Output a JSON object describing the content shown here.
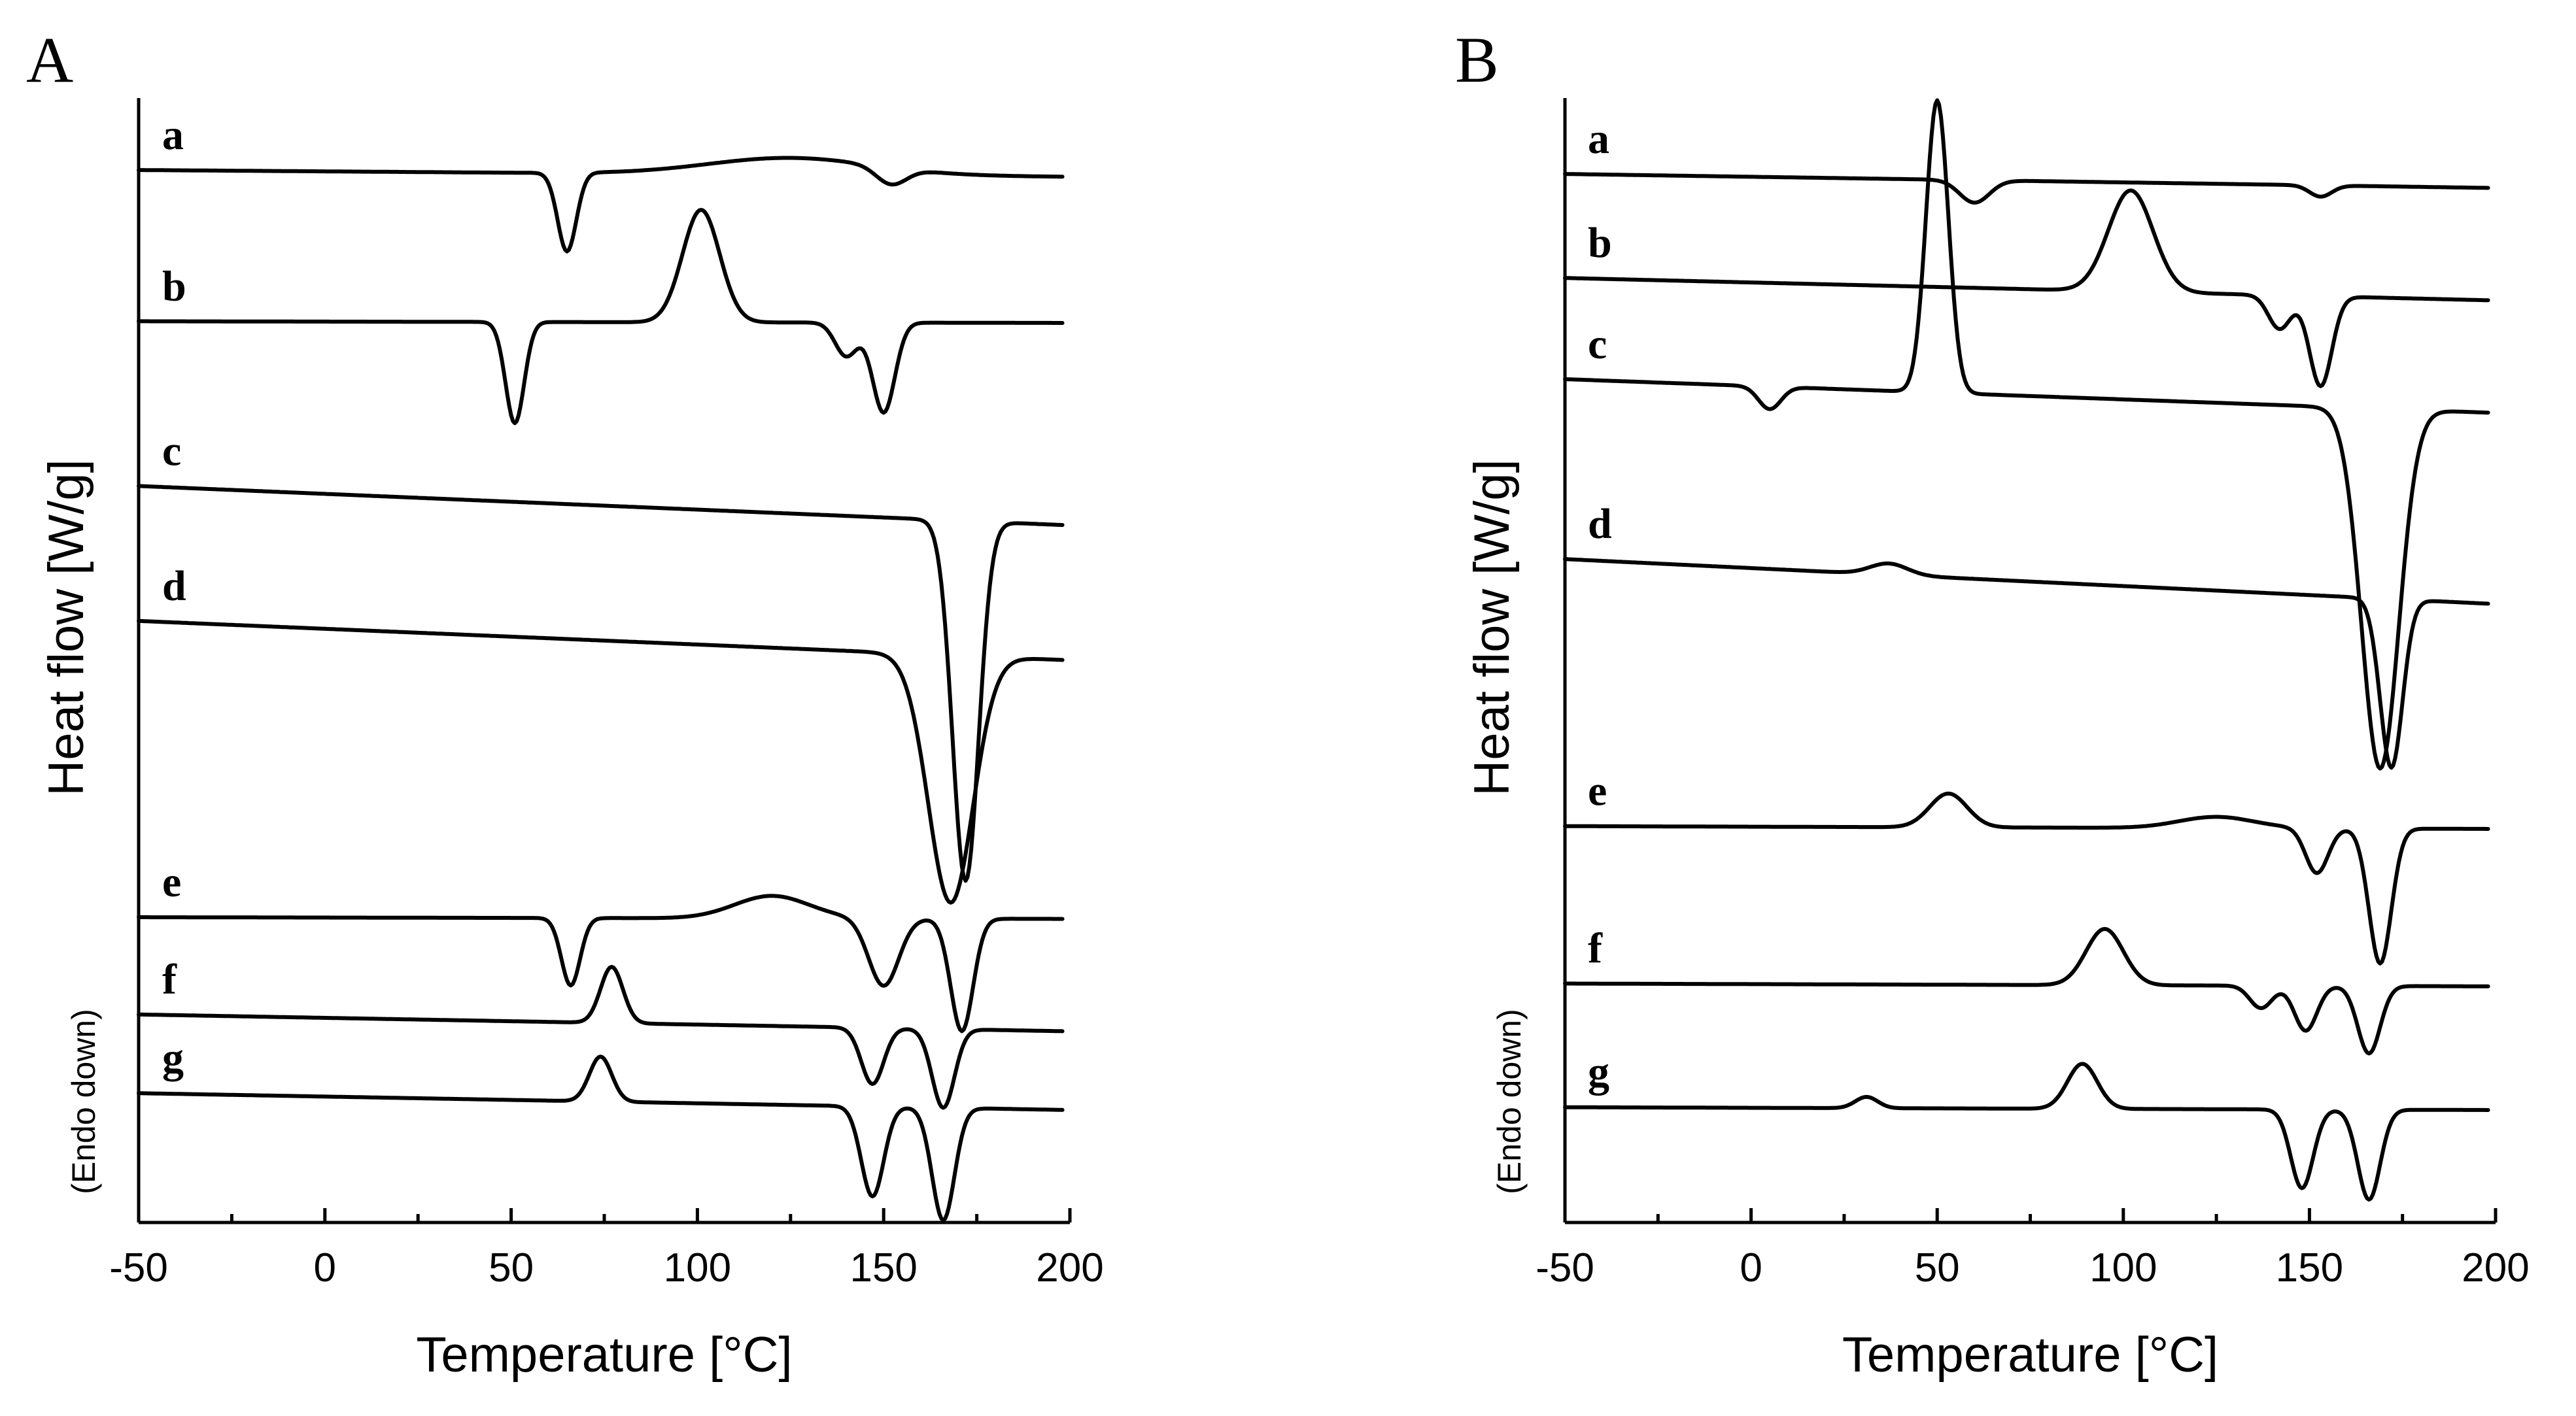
{
  "chart_data": [
    {
      "panel": "A",
      "type": "line",
      "xlabel": "Temperature [°C]",
      "ylabel": "Heat flow [W/g]",
      "ylabel_note": "(Endo down)",
      "xlim": [
        -50,
        200
      ],
      "xticks": [
        -50,
        0,
        50,
        100,
        150,
        200
      ],
      "yticks": [],
      "series": [
        {
          "name": "a",
          "baseline": 0.93,
          "tilt": 0.012,
          "features": [
            {
              "c": 65,
              "a": -0.07,
              "w": 2.5
            },
            {
              "c": 125,
              "a": 0.015,
              "w": 22
            },
            {
              "c": 152,
              "a": -0.015,
              "w": 4
            }
          ]
        },
        {
          "name": "b",
          "baseline": 0.8,
          "tilt": 0.003,
          "features": [
            {
              "c": 51,
              "a": -0.09,
              "w": 2.5
            },
            {
              "c": 101,
              "a": 0.1,
              "w": 5
            },
            {
              "c": 140,
              "a": -0.03,
              "w": 3
            },
            {
              "c": 150,
              "a": -0.08,
              "w": 3
            }
          ]
        },
        {
          "name": "c",
          "baseline": 0.62,
          "tilt": 0.07,
          "features": [
            {
              "c": 172,
              "a": -0.32,
              "w": 3.5
            }
          ]
        },
        {
          "name": "d",
          "baseline": 0.5,
          "tilt": 0.07,
          "features": [
            {
              "c": 168,
              "a": -0.22,
              "w": 6
            }
          ]
        },
        {
          "name": "e",
          "baseline": 0.27,
          "tilt": 0.003,
          "features": [
            {
              "c": 66,
              "a": -0.06,
              "w": 2.5
            },
            {
              "c": 120,
              "a": 0.02,
              "w": 10
            },
            {
              "c": 150,
              "a": -0.06,
              "w": 4
            },
            {
              "c": 171,
              "a": -0.1,
              "w": 3
            }
          ]
        },
        {
          "name": "f",
          "baseline": 0.17,
          "tilt": 0.03,
          "features": [
            {
              "c": 77,
              "a": 0.05,
              "w": 3
            },
            {
              "c": 147,
              "a": -0.05,
              "w": 3
            },
            {
              "c": 166,
              "a": -0.07,
              "w": 3
            }
          ]
        },
        {
          "name": "g",
          "baseline": 0.1,
          "tilt": 0.03,
          "features": [
            {
              "c": 74,
              "a": 0.04,
              "w": 3
            },
            {
              "c": 147,
              "a": -0.08,
              "w": 3
            },
            {
              "c": 166,
              "a": -0.1,
              "w": 3
            }
          ]
        }
      ]
    },
    {
      "panel": "B",
      "type": "line",
      "xlabel": "Temperature [°C]",
      "ylabel": "Heat flow [W/g]",
      "ylabel_note": "(Endo down)",
      "xlim": [
        -50,
        200
      ],
      "xticks": [
        -50,
        0,
        50,
        100,
        150,
        200
      ],
      "yticks": [],
      "series": [
        {
          "name": "a",
          "baseline": 0.92,
          "tilt": 0.025,
          "features": [
            {
              "c": 60,
              "a": -0.02,
              "w": 4
            },
            {
              "c": 153,
              "a": -0.01,
              "w": 3
            }
          ]
        },
        {
          "name": "b",
          "baseline": 0.82,
          "tilt": 0.04,
          "features": [
            {
              "c": 102,
              "a": 0.09,
              "w": 6
            },
            {
              "c": 142,
              "a": -0.03,
              "w": 3
            },
            {
              "c": 153,
              "a": -0.08,
              "w": 3
            }
          ]
        },
        {
          "name": "c",
          "baseline": 0.72,
          "tilt": 0.06,
          "features": [
            {
              "c": 5,
              "a": -0.02,
              "w": 3
            },
            {
              "c": 50,
              "a": 0.26,
              "w": 3
            },
            {
              "c": 169,
              "a": -0.32,
              "w": 5
            }
          ]
        },
        {
          "name": "d",
          "baseline": 0.55,
          "tilt": 0.08,
          "features": [
            {
              "c": 37,
              "a": 0.01,
              "w": 5
            },
            {
              "c": 172,
              "a": -0.15,
              "w": 3
            }
          ]
        },
        {
          "name": "e",
          "baseline": 0.35,
          "tilt": 0.005,
          "features": [
            {
              "c": 53,
              "a": 0.03,
              "w": 5
            },
            {
              "c": 125,
              "a": 0.01,
              "w": 10
            },
            {
              "c": 152,
              "a": -0.04,
              "w": 3
            },
            {
              "c": 169,
              "a": -0.12,
              "w": 3
            }
          ]
        },
        {
          "name": "f",
          "baseline": 0.21,
          "tilt": 0.005,
          "features": [
            {
              "c": 95,
              "a": 0.05,
              "w": 5
            },
            {
              "c": 137,
              "a": -0.02,
              "w": 3
            },
            {
              "c": 149,
              "a": -0.04,
              "w": 3
            },
            {
              "c": 166,
              "a": -0.06,
              "w": 3
            }
          ]
        },
        {
          "name": "g",
          "baseline": 0.1,
          "tilt": 0.005,
          "features": [
            {
              "c": 31,
              "a": 0.01,
              "w": 3
            },
            {
              "c": 89,
              "a": 0.04,
              "w": 4
            },
            {
              "c": 148,
              "a": -0.07,
              "w": 3
            },
            {
              "c": 166,
              "a": -0.08,
              "w": 3
            }
          ]
        }
      ]
    }
  ]
}
